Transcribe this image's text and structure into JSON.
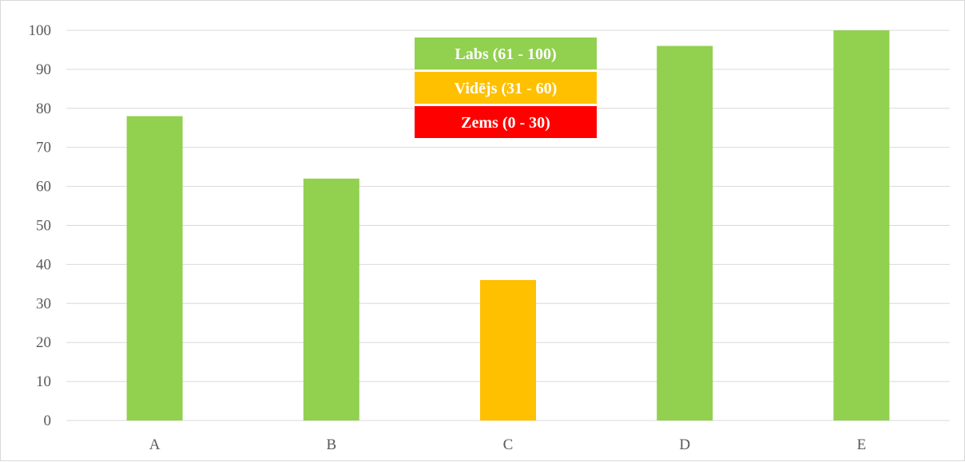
{
  "chart_data": {
    "type": "bar",
    "categories": [
      "A",
      "B",
      "C",
      "D",
      "E"
    ],
    "values": [
      78,
      62,
      36,
      96,
      100
    ],
    "ylim": [
      0,
      100
    ],
    "yticks": [
      0,
      10,
      20,
      30,
      40,
      50,
      60,
      70,
      80,
      90,
      100
    ],
    "grid": true,
    "legend_placement": "top-center",
    "legend": [
      {
        "label": "Labs (61 - 100)",
        "color": "#92d050",
        "min": 61,
        "max": 100
      },
      {
        "label": "Vidējs (31 - 60)",
        "color": "#ffc000",
        "min": 31,
        "max": 60
      },
      {
        "label": "Zems (0 - 30)",
        "color": "#ff0000",
        "min": 0,
        "max": 30
      }
    ]
  }
}
